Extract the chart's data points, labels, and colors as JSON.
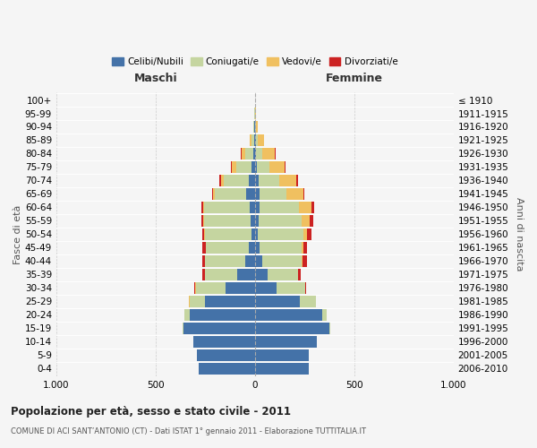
{
  "age_groups": [
    "0-4",
    "5-9",
    "10-14",
    "15-19",
    "20-24",
    "25-29",
    "30-34",
    "35-39",
    "40-44",
    "45-49",
    "50-54",
    "55-59",
    "60-64",
    "65-69",
    "70-74",
    "75-79",
    "80-84",
    "85-89",
    "90-94",
    "95-99",
    "100+"
  ],
  "birth_years": [
    "2006-2010",
    "2001-2005",
    "1996-2000",
    "1991-1995",
    "1986-1990",
    "1981-1985",
    "1976-1980",
    "1971-1975",
    "1966-1970",
    "1961-1965",
    "1956-1960",
    "1951-1955",
    "1946-1950",
    "1941-1945",
    "1936-1940",
    "1931-1935",
    "1926-1930",
    "1921-1925",
    "1916-1920",
    "1911-1915",
    "≤ 1910"
  ],
  "males": {
    "celibi": [
      285,
      290,
      310,
      360,
      330,
      250,
      150,
      90,
      50,
      30,
      15,
      20,
      28,
      42,
      30,
      15,
      8,
      4,
      2,
      1,
      0
    ],
    "coniugati": [
      0,
      0,
      1,
      5,
      25,
      80,
      148,
      160,
      200,
      218,
      238,
      238,
      228,
      158,
      128,
      78,
      42,
      14,
      4,
      1,
      0
    ],
    "vedovi": [
      0,
      0,
      0,
      0,
      0,
      1,
      1,
      1,
      1,
      1,
      2,
      3,
      4,
      9,
      14,
      22,
      18,
      8,
      3,
      1,
      0
    ],
    "divorziati": [
      0,
      0,
      0,
      0,
      1,
      3,
      5,
      12,
      14,
      18,
      12,
      10,
      10,
      8,
      9,
      4,
      1,
      0,
      0,
      0,
      0
    ]
  },
  "females": {
    "nubili": [
      272,
      272,
      310,
      375,
      338,
      228,
      108,
      63,
      38,
      23,
      14,
      18,
      23,
      22,
      18,
      8,
      6,
      4,
      2,
      1,
      0
    ],
    "coniugate": [
      0,
      0,
      1,
      4,
      22,
      78,
      143,
      153,
      198,
      212,
      232,
      218,
      198,
      138,
      103,
      63,
      33,
      9,
      4,
      1,
      0
    ],
    "vedove": [
      0,
      0,
      0,
      0,
      0,
      1,
      1,
      2,
      4,
      9,
      18,
      38,
      63,
      83,
      88,
      78,
      62,
      33,
      8,
      2,
      0
    ],
    "divorziate": [
      0,
      0,
      0,
      0,
      1,
      2,
      7,
      11,
      21,
      19,
      19,
      19,
      14,
      7,
      9,
      4,
      2,
      0,
      0,
      0,
      0
    ]
  },
  "colors": {
    "celibi": "#4472a8",
    "coniugati": "#c5d5a0",
    "vedovi": "#f0c060",
    "divorziati": "#cc2222"
  },
  "title": "Popolazione per età, sesso e stato civile - 2011",
  "subtitle": "COMUNE DI ACI SANT’ANTONIO (CT) - Dati ISTAT 1° gennaio 2011 - Elaborazione TUTTITALIA.IT",
  "label_maschi": "Maschi",
  "label_femmine": "Femmine",
  "ylabel_left": "Fasce di età",
  "ylabel_right": "Anni di nascita",
  "legend_labels": [
    "Celibi/Nubili",
    "Coniugati/e",
    "Vedovi/e",
    "Divorziati/e"
  ],
  "xlim": 1000,
  "bg_color": "#f5f5f5",
  "grid_color": "#cccccc",
  "bar_height": 0.88
}
